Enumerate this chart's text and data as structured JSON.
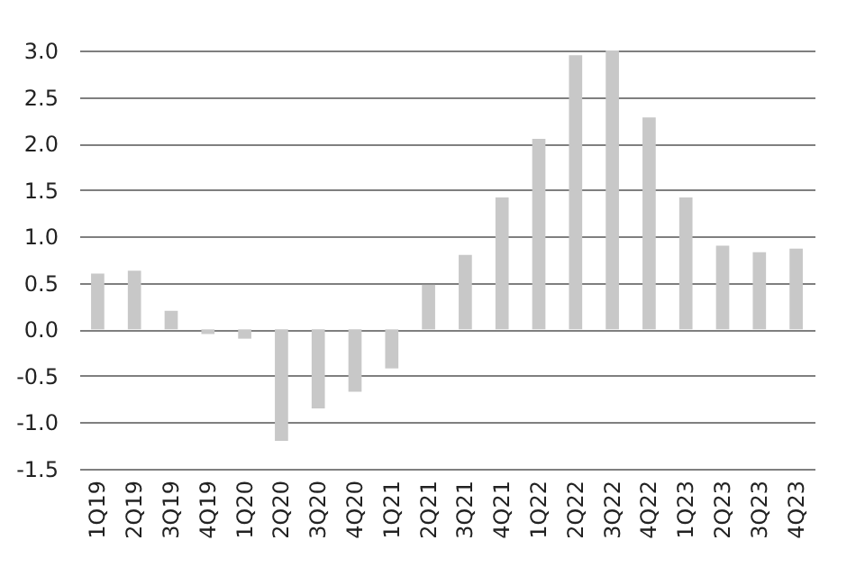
{
  "chart_data": {
    "type": "bar",
    "categories": [
      "1Q19",
      "2Q19",
      "3Q19",
      "4Q19",
      "1Q20",
      "2Q20",
      "3Q20",
      "4Q20",
      "1Q21",
      "2Q21",
      "3Q21",
      "4Q21",
      "1Q22",
      "2Q22",
      "3Q22",
      "4Q22",
      "1Q23",
      "2Q23",
      "3Q23",
      "4Q23"
    ],
    "values": [
      0.6,
      0.63,
      0.2,
      -0.05,
      -0.1,
      -1.2,
      -0.85,
      -0.67,
      -0.42,
      0.48,
      0.8,
      1.42,
      2.05,
      2.95,
      3.0,
      2.28,
      1.42,
      0.9,
      0.83,
      0.87
    ],
    "color": "#c8c8c8",
    "ylim": [
      -1.5,
      3.0
    ],
    "yticks": [
      {
        "value": -1.5,
        "label": "-1.5"
      },
      {
        "value": -1,
        "label": "-1.0"
      },
      {
        "value": -0.5,
        "label": "-0.5"
      },
      {
        "value": 0,
        "label": "0.0"
      },
      {
        "value": 0.5,
        "label": "0.5"
      },
      {
        "value": 1,
        "label": "1.0"
      },
      {
        "value": 1.5,
        "label": "1.5"
      },
      {
        "value": 2,
        "label": "2.0"
      },
      {
        "value": 2.5,
        "label": "2.5"
      },
      {
        "value": 3,
        "label": "3.0"
      }
    ],
    "grid": "y"
  }
}
